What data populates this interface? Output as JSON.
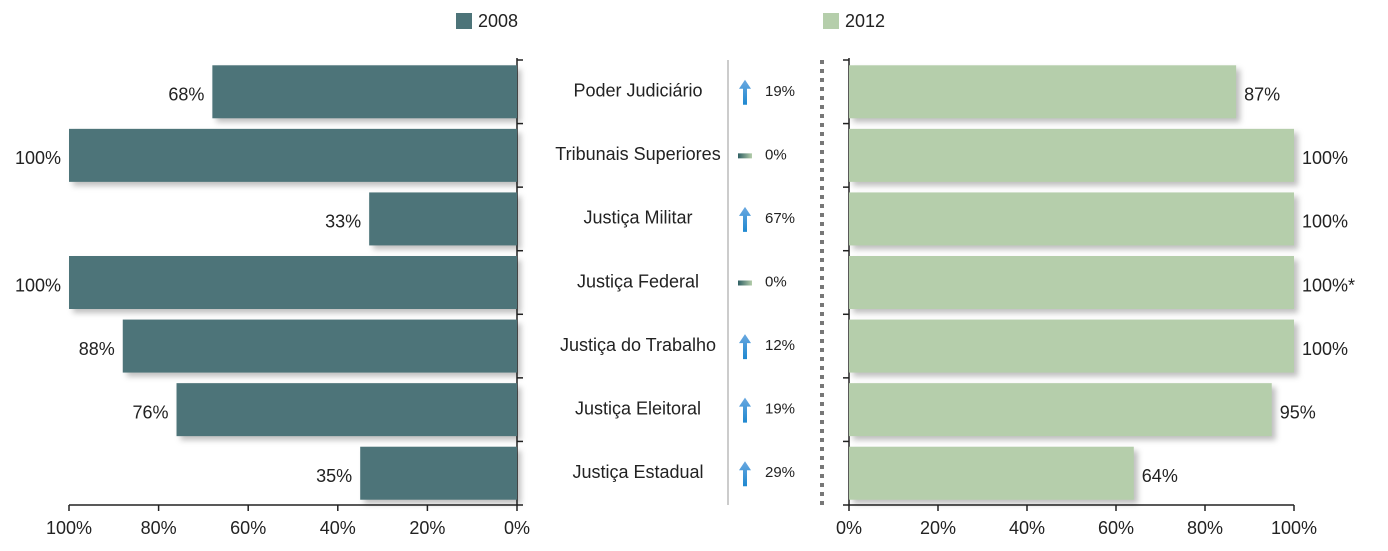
{
  "chart_data": {
    "type": "bar",
    "categories": [
      "Poder Judiciário",
      "Tribunais Superiores",
      "Justiça Militar",
      "Justiça Federal",
      "Justiça do Trabalho",
      "Justiça Eleitoral",
      "Justiça Estadual"
    ],
    "series": [
      {
        "name": "2008",
        "color": "#4d7479",
        "values": [
          68,
          100,
          33,
          100,
          88,
          76,
          35
        ],
        "value_labels": [
          "68%",
          "100%",
          "33%",
          "100%",
          "88%",
          "76%",
          "35%"
        ]
      },
      {
        "name": "2012",
        "color": "#b5ceab",
        "values": [
          87,
          100,
          100,
          100,
          100,
          95,
          64
        ],
        "value_labels": [
          "87%",
          "100%",
          "100%",
          "100%*",
          "100%",
          "95%",
          "64%"
        ]
      }
    ],
    "change": {
      "values": [
        19,
        0,
        67,
        0,
        12,
        19,
        29
      ],
      "value_labels": [
        "19%",
        "0%",
        "67%",
        "0%",
        "12%",
        "19%",
        "29%"
      ]
    },
    "xlim": [
      0,
      100
    ],
    "xticks": [
      {
        "value": 0,
        "label": "0%"
      },
      {
        "value": 20,
        "label": "20%"
      },
      {
        "value": 40,
        "label": "40%"
      },
      {
        "value": 60,
        "label": "60%"
      },
      {
        "value": 80,
        "label": "80%"
      },
      {
        "value": 100,
        "label": "100%"
      }
    ]
  }
}
